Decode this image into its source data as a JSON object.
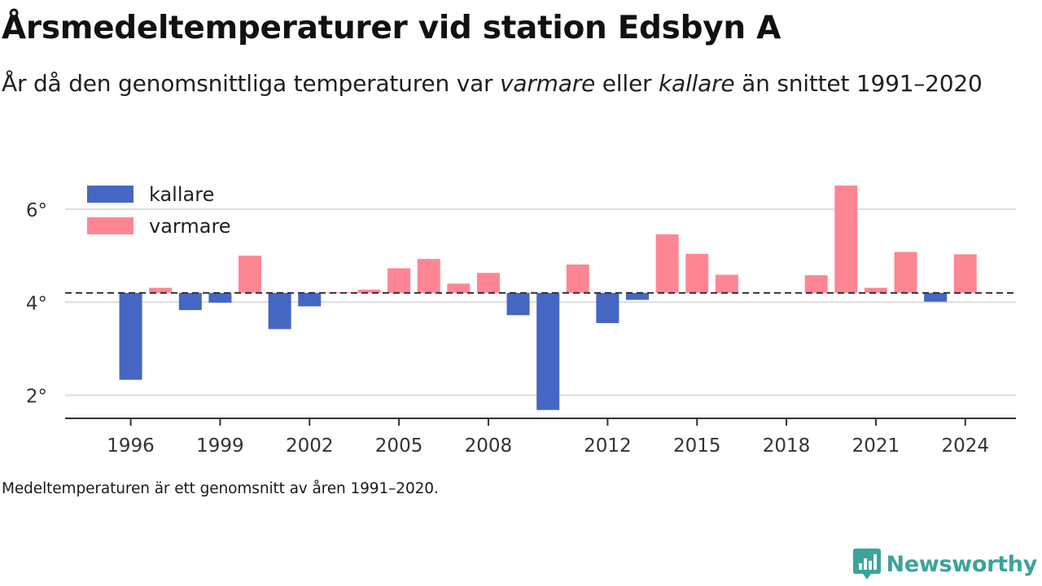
{
  "title": "Årsmedeltemperaturer vid station Edsbyn A",
  "subtitle": {
    "part1": "År då den genomsnittliga temperaturen var ",
    "em1": "varmare",
    "part2": " eller ",
    "em2": "kallare",
    "part3": " än snittet 1991–2020"
  },
  "footnote": "Medeltemperaturen är ett genomsnitt av åren 1991–2020.",
  "logo": {
    "text": "Newsworthy",
    "icon": "newsworthy-chart-icon",
    "color": "#3ba39b"
  },
  "colors": {
    "kallare": "#4566c3",
    "varmare": "#fe8694",
    "grid": "#dcdcdc",
    "axis": "#333333",
    "baseline": "#333333"
  },
  "chart_data": {
    "type": "bar",
    "baseline": 4.2,
    "baseline_style": "dashed",
    "ylim": [
      1.5,
      7.0
    ],
    "xlim": [
      1993.8,
      2025.7
    ],
    "y_ticks": [
      2,
      4,
      6
    ],
    "y_tick_suffix": "°",
    "x_ticks": [
      1996,
      1999,
      2002,
      2005,
      2008,
      2012,
      2015,
      2018,
      2021,
      2024
    ],
    "grid": "horizontal",
    "legend": {
      "placement": "top-left",
      "items": [
        {
          "key": "kallare",
          "label": "kallare"
        },
        {
          "key": "varmare",
          "label": "varmare"
        }
      ]
    },
    "data": [
      {
        "year": 1996,
        "value": 2.33
      },
      {
        "year": 1997,
        "value": 4.31
      },
      {
        "year": 1998,
        "value": 3.83
      },
      {
        "year": 1999,
        "value": 3.99
      },
      {
        "year": 2000,
        "value": 5.0
      },
      {
        "year": 2001,
        "value": 3.42
      },
      {
        "year": 2002,
        "value": 3.91
      },
      {
        "year": 2003,
        "value": 4.21
      },
      {
        "year": 2004,
        "value": 4.27
      },
      {
        "year": 2005,
        "value": 4.73
      },
      {
        "year": 2006,
        "value": 4.93
      },
      {
        "year": 2007,
        "value": 4.4
      },
      {
        "year": 2008,
        "value": 4.63
      },
      {
        "year": 2009,
        "value": 3.72
      },
      {
        "year": 2010,
        "value": 1.68
      },
      {
        "year": 2011,
        "value": 4.81
      },
      {
        "year": 2012,
        "value": 3.55
      },
      {
        "year": 2013,
        "value": 4.05
      },
      {
        "year": 2014,
        "value": 5.46
      },
      {
        "year": 2015,
        "value": 5.04
      },
      {
        "year": 2016,
        "value": 4.59
      },
      {
        "year": 2019,
        "value": 4.58
      },
      {
        "year": 2020,
        "value": 6.51
      },
      {
        "year": 2021,
        "value": 4.31
      },
      {
        "year": 2022,
        "value": 5.08
      },
      {
        "year": 2023,
        "value": 4.01
      },
      {
        "year": 2024,
        "value": 5.03
      }
    ]
  }
}
